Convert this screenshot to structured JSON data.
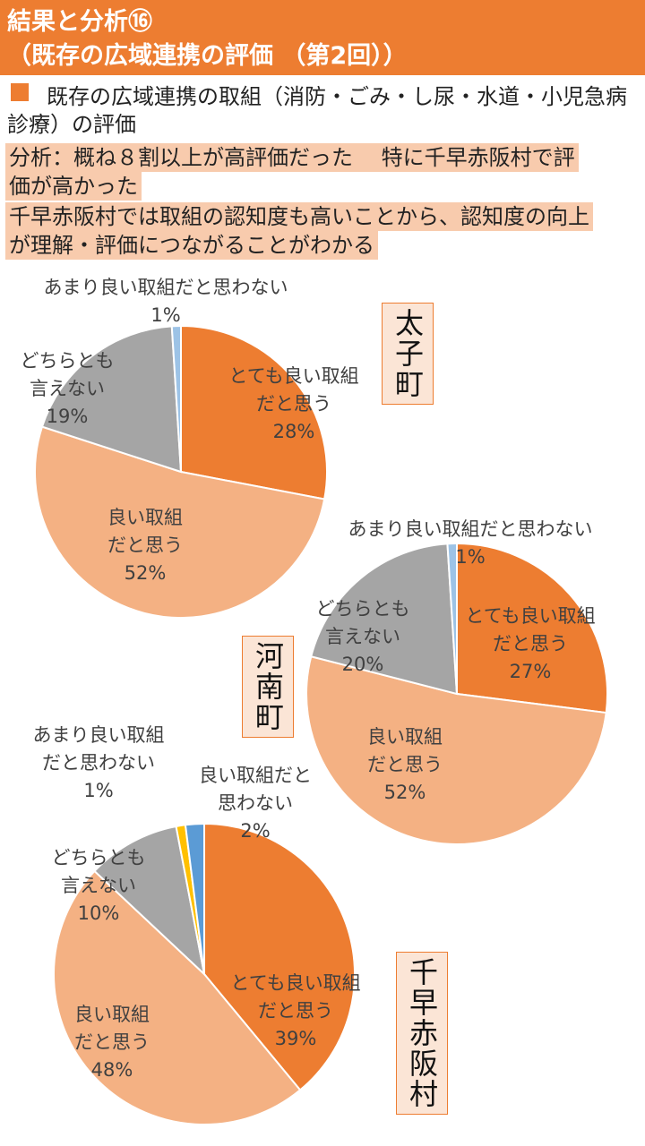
{
  "header": {
    "title_line1": "結果と分析⑯",
    "title_line2": "（既存の広域連携の評価 （第2回））"
  },
  "intro": {
    "line1": "既存の広域連携の取組（消防・ごみ・し尿・水道・小児急病",
    "line2": "診療）の評価"
  },
  "analysis": {
    "line1": "分析：概ね８割以上が高評価だった　 特に千早赤阪村で評",
    "line2": "価が高かった",
    "line3": "千早赤阪村では取組の認知度も高いことから、認知度の向上",
    "line4": "が理解・評価につながることがわかる"
  },
  "colors": {
    "accent": "#ED7D31",
    "highlight": "#F8CBAD",
    "town_box": "#FBE5D6"
  },
  "chart_data": [
    {
      "type": "pie",
      "title": "太子町",
      "labels": [
        "とても良い取組だと思う",
        "良い取組だと思う",
        "どちらとも言えない",
        "あまり良い取組だと思わない"
      ],
      "values": [
        28,
        52,
        19,
        1
      ],
      "colors": [
        "#ED7D31",
        "#F4B183",
        "#A5A5A5",
        "#9DC3E6"
      ],
      "label_lines": [
        [
          "とても良い取組",
          "だと思う",
          "28%"
        ],
        [
          "良い取組",
          "だと思う",
          "52%"
        ],
        [
          "どちらとも",
          "言えない",
          "19%"
        ],
        [
          "あまり良い取組だと思わない",
          "1%"
        ]
      ]
    },
    {
      "type": "pie",
      "title": "河南町",
      "labels": [
        "とても良い取組だと思う",
        "良い取組だと思う",
        "どちらとも言えない",
        "あまり良い取組だと思わない"
      ],
      "values": [
        27,
        52,
        20,
        1
      ],
      "colors": [
        "#ED7D31",
        "#F4B183",
        "#A5A5A5",
        "#9DC3E6"
      ],
      "label_lines": [
        [
          "とても良い取組",
          "だと思う",
          "27%"
        ],
        [
          "良い取組",
          "だと思う",
          "52%"
        ],
        [
          "どちらとも",
          "言えない",
          "20%"
        ],
        [
          "あまり良い取組だと思わない",
          "1%"
        ]
      ]
    },
    {
      "type": "pie",
      "title": "千早赤阪村",
      "labels": [
        "とても良い取組だと思う",
        "良い取組だと思う",
        "どちらとも言えない",
        "あまり良い取組だと思わない",
        "良い取組だと思わない"
      ],
      "values": [
        39,
        48,
        10,
        1,
        2
      ],
      "colors": [
        "#ED7D31",
        "#F4B183",
        "#A5A5A5",
        "#FFC000",
        "#5B9BD5"
      ],
      "label_lines": [
        [
          "とても良い取組",
          "だと思う",
          "39%"
        ],
        [
          "良い取組",
          "だと思う",
          "48%"
        ],
        [
          "どちらとも",
          "言えない",
          "10%"
        ],
        [
          "あまり良い取組",
          "だと思わない",
          "1%"
        ],
        [
          "良い取組だと",
          "思わない",
          "2%"
        ]
      ]
    }
  ]
}
